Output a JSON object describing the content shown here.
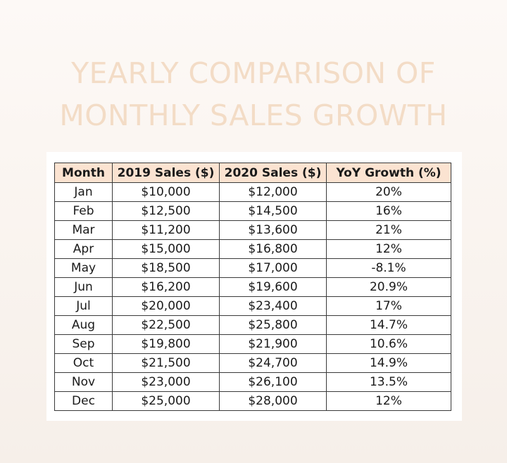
{
  "title": {
    "line1": "YEARLY COMPARISON OF",
    "line2": "MONTHLY SALES GROWTH"
  },
  "table": {
    "headers": [
      "Month",
      "2019 Sales ($)",
      "2020 Sales ($)",
      "YoY Growth (%)"
    ],
    "rows": [
      [
        "Jan",
        "$10,000",
        "$12,000",
        "20%"
      ],
      [
        "Feb",
        "$12,500",
        "$14,500",
        "16%"
      ],
      [
        "Mar",
        "$11,200",
        "$13,600",
        "21%"
      ],
      [
        "Apr",
        "$15,000",
        "$16,800",
        "12%"
      ],
      [
        "May",
        "$18,500",
        "$17,000",
        "-8.1%"
      ],
      [
        "Jun",
        "$16,200",
        "$19,600",
        "20.9%"
      ],
      [
        "Jul",
        "$20,000",
        "$23,400",
        "17%"
      ],
      [
        "Aug",
        "$22,500",
        "$25,800",
        "14.7%"
      ],
      [
        "Sep",
        "$19,800",
        "$21,900",
        "10.6%"
      ],
      [
        "Oct",
        "$21,500",
        "$24,700",
        "14.9%"
      ],
      [
        "Nov",
        "$23,000",
        "$26,100",
        "13.5%"
      ],
      [
        "Dec",
        "$25,000",
        "$28,000",
        "12%"
      ]
    ]
  },
  "colors": {
    "title": "#f3dcc6",
    "header_fill": "#fbe3d1",
    "border": "#3a3a3a",
    "background": "#fbf6f2"
  }
}
